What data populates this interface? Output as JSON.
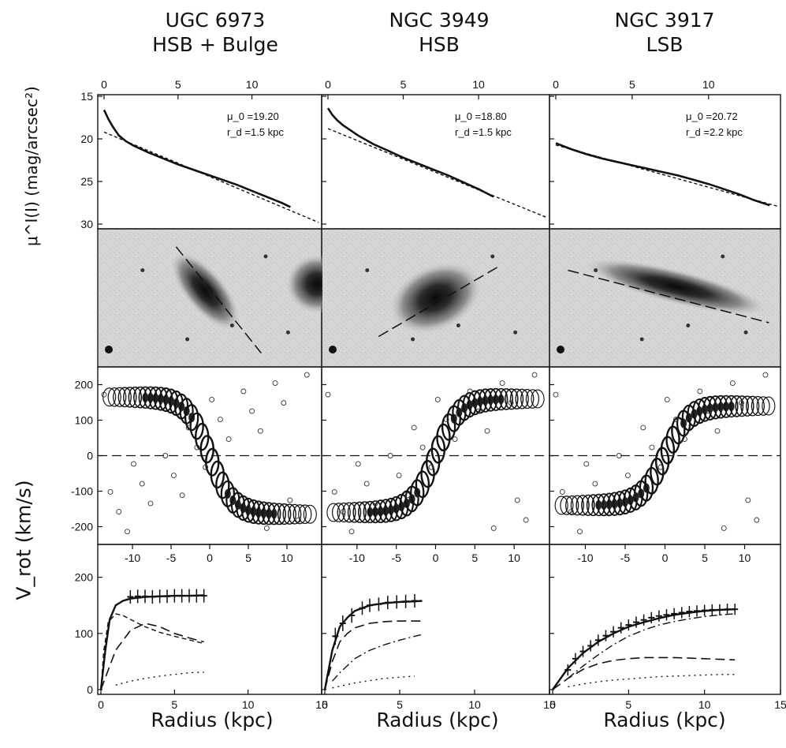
{
  "titles": [
    {
      "name": "UGC 6973",
      "type": "HSB + Bulge"
    },
    {
      "name": "NGC 3949",
      "type": "HSB"
    },
    {
      "name": "NGC 3917",
      "type": "LSB"
    }
  ],
  "labels": {
    "profile_y": "μ^I(I) (mag/arcsec²)",
    "vrot_y": "V_rot (km/s)",
    "radius_x": "Radius (kpc)"
  },
  "chart_data": [
    {
      "panel": "surface-brightness-profiles",
      "type": "line",
      "xlabel": "Radius (kpc)",
      "ylabel": "μ^I(I) (mag/arcsec²)",
      "xlim": [
        0,
        14.5
      ],
      "ylim": [
        30,
        15
      ],
      "x_ticks": [
        0,
        5,
        10
      ],
      "y_ticks": [
        15,
        20,
        25,
        30
      ],
      "galaxies": [
        {
          "galaxy": "UGC 6973",
          "annotation": {
            "mu": "μ_0 =19.20",
            "rd": "r_d =1.5 kpc"
          },
          "x": [
            0,
            0.3,
            0.6,
            1,
            1.5,
            2,
            3,
            4,
            5,
            6,
            7,
            8,
            9,
            10,
            11,
            12,
            12.6
          ],
          "y": [
            16.6,
            17.7,
            18.6,
            19.6,
            20.3,
            20.8,
            21.6,
            22.3,
            23.0,
            23.6,
            24.2,
            24.8,
            25.4,
            26.1,
            26.8,
            27.5,
            28.0
          ],
          "fit": {
            "x": [
              0,
              14.5
            ],
            "y": [
              19.2,
              29.8
            ]
          }
        },
        {
          "galaxy": "NGC 3949",
          "annotation": {
            "mu": "μ_0 =18.80",
            "rd": "r_d =1.5 kpc"
          },
          "x": [
            0,
            0.3,
            0.6,
            1,
            2,
            3,
            4,
            5,
            6,
            7,
            8,
            9,
            10,
            11
          ],
          "y": [
            16.4,
            17.2,
            17.8,
            18.4,
            19.6,
            20.6,
            21.4,
            22.2,
            22.9,
            23.6,
            24.3,
            25.1,
            25.9,
            26.8
          ],
          "fit": {
            "x": [
              0,
              14.5
            ],
            "y": [
              18.8,
              29.2
            ]
          }
        },
        {
          "galaxy": "NGC 3917",
          "annotation": {
            "mu": "μ_0 =20.72",
            "rd": "r_d =2.2 kpc"
          },
          "x": [
            0,
            1,
            2,
            3,
            4,
            5,
            6,
            7,
            8,
            9,
            10,
            11,
            12,
            13,
            14
          ],
          "y": [
            20.5,
            21.2,
            21.8,
            22.3,
            22.7,
            23.1,
            23.5,
            23.9,
            24.3,
            24.8,
            25.3,
            25.9,
            26.5,
            27.2,
            27.8
          ],
          "fit": {
            "x": [
              0,
              14.5
            ],
            "y": [
              20.72,
              27.9
            ]
          }
        }
      ]
    },
    {
      "panel": "position-velocity-diagrams",
      "type": "heatmap",
      "xlim": [
        -14.5,
        14.5
      ],
      "ylim": [
        -250,
        250
      ],
      "x_ticks": [
        -10,
        -5,
        0,
        5,
        10
      ],
      "y_ticks": [
        -200,
        -100,
        0,
        100,
        200
      ],
      "ylabel": "V_rot (km/s)",
      "galaxies": [
        {
          "galaxy": "UGC 6973",
          "approaching_side": "positive",
          "vflat": 165,
          "systemic": 0
        },
        {
          "galaxy": "NGC 3949",
          "approaching_side": "negative",
          "vflat": 160,
          "systemic": 0
        },
        {
          "galaxy": "NGC 3917",
          "approaching_side": "negative",
          "vflat": 140,
          "systemic": 0
        }
      ]
    },
    {
      "panel": "rotation-curves",
      "type": "line",
      "xlabel": "Radius (kpc)",
      "ylabel": "V_rot (km/s)",
      "xlim": [
        0,
        15
      ],
      "ylim": [
        0,
        250
      ],
      "x_ticks": [
        0,
        5,
        10,
        15
      ],
      "y_ticks": [
        0,
        100,
        200
      ],
      "galaxies": [
        {
          "galaxy": "UGC 6973",
          "observed": {
            "x": [
              2,
              2.5,
              3,
              3.5,
              4,
              4.5,
              5,
              5.5,
              6,
              6.5,
              7
            ],
            "y": [
              165,
              166,
              166,
              165,
              166,
              166,
              167,
              167,
              167,
              167,
              167
            ],
            "err": [
              12,
              12,
              12,
              12,
              12,
              12,
              12,
              12,
              12,
              12,
              12
            ]
          },
          "total": {
            "x": [
              0,
              0.3,
              0.6,
              1,
              1.5,
              2,
              3,
              4,
              5,
              6,
              7
            ],
            "y": [
              0,
              70,
              125,
              150,
              158,
              162,
              165,
              166,
              167,
              167,
              168
            ]
          },
          "disk": {
            "x": [
              0,
              0.5,
              1,
              2,
              3,
              4,
              5,
              6,
              7
            ],
            "y": [
              0,
              35,
              70,
              105,
              118,
              112,
              100,
              92,
              85
            ]
          },
          "bulge": {
            "x": [
              0,
              0.2,
              0.5,
              1,
              1.5,
              2,
              3,
              4,
              5,
              7
            ],
            "y": [
              0,
              70,
              120,
              135,
              132,
              125,
              112,
              102,
              95,
              82
            ]
          },
          "gas": {
            "x": [
              1,
              2,
              3,
              4,
              5,
              6,
              7
            ],
            "y": [
              8,
              15,
              20,
              24,
              27,
              30,
              31
            ]
          }
        },
        {
          "galaxy": "NGC 3949",
          "observed": {
            "x": [
              0.7,
              1.2,
              1.8,
              2.5,
              3,
              3.6,
              4.2,
              4.8,
              5.4,
              6
            ],
            "y": [
              95,
              118,
              132,
              145,
              150,
              152,
              155,
              156,
              157,
              158
            ],
            "err": [
              15,
              14,
              13,
              12,
              12,
              12,
              12,
              12,
              12,
              12
            ]
          },
          "total": {
            "x": [
              0,
              0.5,
              1,
              1.5,
              2,
              3,
              4,
              5,
              6,
              6.5
            ],
            "y": [
              0,
              70,
              112,
              128,
              140,
              150,
              154,
              156,
              157,
              158
            ]
          },
          "disk": {
            "x": [
              0,
              0.5,
              1,
              1.5,
              2,
              3,
              4,
              5,
              6,
              6.5
            ],
            "y": [
              0,
              50,
              85,
              100,
              110,
              118,
              121,
              122,
              122,
              122
            ]
          },
          "halo": {
            "x": [
              0.5,
              1,
              2,
              3,
              4,
              5,
              6,
              6.5
            ],
            "y": [
              15,
              30,
              55,
              70,
              80,
              88,
              95,
              98
            ]
          },
          "gas": {
            "x": [
              0.5,
              1,
              2,
              3,
              4,
              5,
              6
            ],
            "y": [
              3,
              6,
              12,
              16,
              20,
              22,
              24
            ]
          }
        },
        {
          "galaxy": "NGC 3917",
          "observed": {
            "x": [
              1,
              1.5,
              2,
              2.5,
              3,
              3.5,
              4,
              4.5,
              5,
              5.5,
              6,
              6.5,
              7,
              7.5,
              8,
              8.5,
              9,
              9.5,
              10,
              10.5,
              11,
              11.5,
              12
            ],
            "y": [
              35,
              55,
              68,
              78,
              88,
              96,
              103,
              110,
              115,
              120,
              124,
              128,
              131,
              133,
              135,
              137,
              139,
              140,
              141,
              142,
              142,
              143,
              143
            ],
            "err": [
              10,
              10,
              10,
              10,
              10,
              10,
              10,
              10,
              10,
              10,
              10,
              10,
              10,
              10,
              10,
              10,
              10,
              10,
              10,
              10,
              10,
              10,
              10
            ]
          },
          "total": {
            "x": [
              0,
              1,
              2,
              3,
              4,
              5,
              6,
              7,
              8,
              9,
              10,
              11,
              12
            ],
            "y": [
              0,
              38,
              65,
              85,
              100,
              112,
              120,
              127,
              133,
              137,
              140,
              142,
              143
            ]
          },
          "disk": {
            "x": [
              0,
              1,
              2,
              3,
              4,
              5,
              6,
              7,
              8,
              9,
              10,
              11,
              12
            ],
            "y": [
              0,
              20,
              36,
              46,
              52,
              55,
              57,
              57,
              57,
              56,
              55,
              54,
              53
            ]
          },
          "halo": {
            "x": [
              1,
              2,
              3,
              4,
              5,
              6,
              7,
              8,
              9,
              10,
              11,
              12
            ],
            "y": [
              20,
              42,
              62,
              80,
              95,
              106,
              115,
              121,
              126,
              130,
              133,
              135
            ]
          },
          "gas": {
            "x": [
              1,
              2,
              3,
              4,
              5,
              6,
              7,
              8,
              9,
              10,
              11,
              12
            ],
            "y": [
              5,
              10,
              14,
              17,
              19,
              21,
              23,
              24,
              25,
              26,
              27,
              27
            ]
          }
        }
      ]
    }
  ]
}
